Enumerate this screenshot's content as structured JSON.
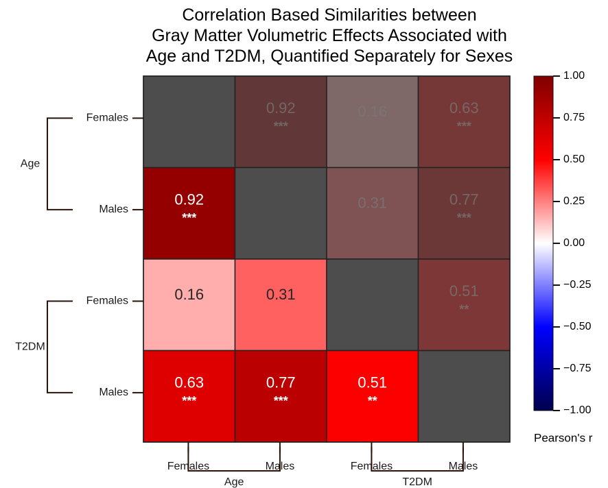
{
  "chart_data": {
    "type": "heatmap",
    "title_lines": [
      "Correlation Based Similarities between",
      "Gray Matter Volumetric Effects Associated with",
      "Age and T2DM, Quantified Separately for Sexes"
    ],
    "row_labels": [
      "Females",
      "Males",
      "Females",
      "Males"
    ],
    "col_labels": [
      "Females",
      "Males",
      "Females",
      "Males"
    ],
    "row_groups": [
      {
        "label": "Age",
        "rows": [
          0,
          1
        ]
      },
      {
        "label": "T2DM",
        "rows": [
          2,
          3
        ]
      }
    ],
    "col_groups": [
      {
        "label": "Age",
        "cols": [
          0,
          1
        ]
      },
      {
        "label": "T2DM",
        "cols": [
          2,
          3
        ]
      }
    ],
    "matrix": [
      [
        null,
        0.92,
        0.16,
        0.63
      ],
      [
        0.92,
        null,
        0.31,
        0.77
      ],
      [
        0.16,
        0.31,
        null,
        0.51
      ],
      [
        0.63,
        0.77,
        0.51,
        null
      ]
    ],
    "significance": [
      [
        "",
        "***",
        "",
        "***"
      ],
      [
        "***",
        "",
        "",
        "***"
      ],
      [
        "",
        "",
        "",
        "**"
      ],
      [
        "***",
        "***",
        "**",
        ""
      ]
    ],
    "upper_triangle_masked": true,
    "diagonal_color": "#4d4d4d",
    "mask_overlay_color": "#4d4d4d",
    "colorbar": {
      "label": "Pearson's r",
      "range": [
        -1.0,
        1.0
      ],
      "ticks": [
        "1.00",
        "0.75",
        "0.50",
        "0.25",
        "0.00",
        "−0.25",
        "−0.50",
        "−0.75",
        "−1.00"
      ],
      "colormap": "seismic"
    },
    "colors": {
      "grid": "#222222",
      "bracket": "#2a1208",
      "label": "#1a1a1a"
    }
  }
}
